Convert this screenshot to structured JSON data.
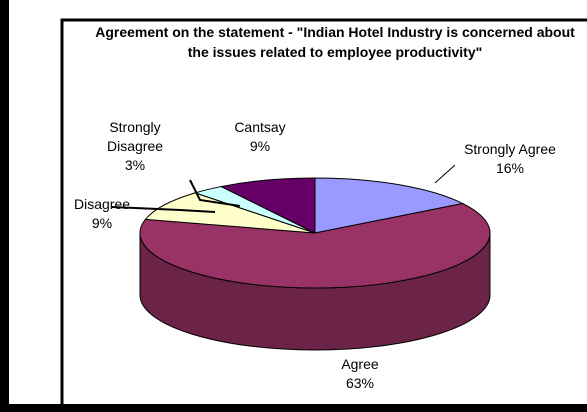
{
  "chart_data": {
    "type": "pie",
    "title": "Agreement on the statement - \"Indian  Hotel Industry is concerned about the issues related to employee productivity\"",
    "categories": [
      "Strongly Agree",
      "Agree",
      "Disagree",
      "Strongly Disagree",
      "Cantsay"
    ],
    "values": [
      16,
      63,
      9,
      3,
      9
    ],
    "value_labels": [
      "16%",
      "63%",
      "9%",
      "3%",
      "9%"
    ],
    "colors": [
      "#9999ff",
      "#993366",
      "#ffffcc",
      "#ccffff",
      "#660066"
    ]
  }
}
